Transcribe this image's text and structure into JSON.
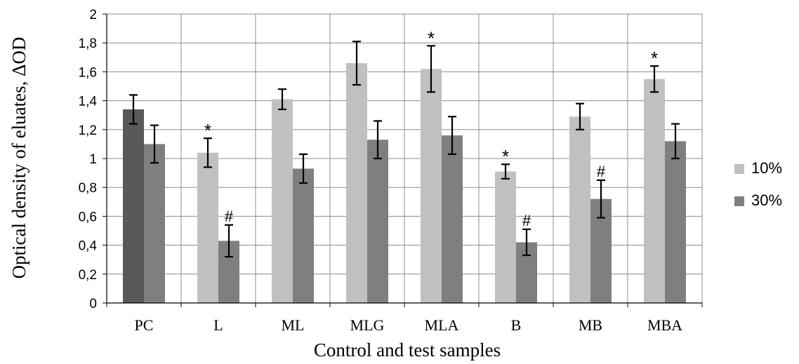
{
  "chart_data": {
    "type": "bar",
    "xlabel": "Control and test samples",
    "ylabel": "Optical density of eluates, ΔOD",
    "ylim": [
      0,
      2
    ],
    "yticks": [
      "0",
      "0,2",
      "0,4",
      "0,6",
      "0,8",
      "1",
      "1,2",
      "1,4",
      "1,6",
      "1,8",
      "2"
    ],
    "grid": true,
    "legend": "right",
    "categories": [
      "PC",
      "L",
      "ML",
      "MLG",
      "MLA",
      "B",
      "MB",
      "MBA"
    ],
    "series": [
      {
        "name": "10%",
        "color": "#c0c0c0",
        "values": [
          1.34,
          1.04,
          1.41,
          1.66,
          1.62,
          0.91,
          1.29,
          1.55
        ],
        "errors": [
          0.1,
          0.1,
          0.07,
          0.15,
          0.16,
          0.05,
          0.09,
          0.09
        ],
        "annotations": [
          "",
          "*",
          "",
          "",
          "*",
          "*",
          "",
          "*"
        ]
      },
      {
        "name": "30%",
        "color": "#7f7f7f",
        "values": [
          1.1,
          0.43,
          0.93,
          1.13,
          1.16,
          0.42,
          0.72,
          1.12
        ],
        "errors": [
          0.13,
          0.11,
          0.1,
          0.13,
          0.13,
          0.09,
          0.13,
          0.12
        ],
        "annotations": [
          "",
          "#",
          "",
          "",
          "",
          "#",
          "#",
          ""
        ]
      }
    ],
    "highlight": {
      "category_index": 0,
      "series_index": 0,
      "color": "#595959"
    }
  }
}
